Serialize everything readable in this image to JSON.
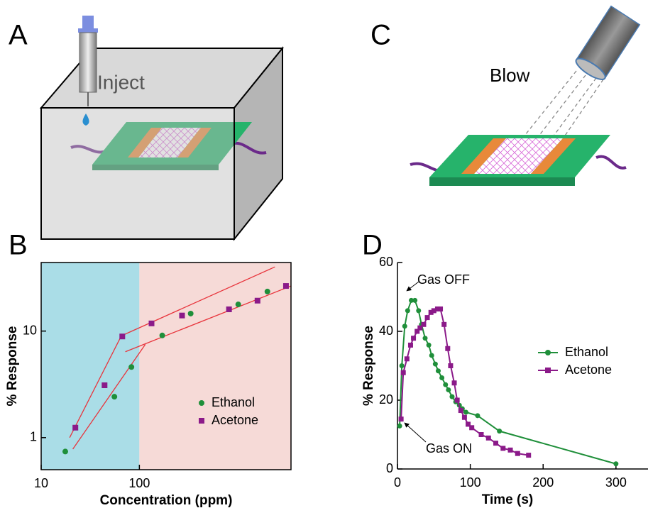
{
  "panels": {
    "a": {
      "label": "A",
      "text": "Inject"
    },
    "b": {
      "label": "B"
    },
    "c": {
      "label": "C",
      "text": "Blow"
    },
    "d": {
      "label": "D"
    }
  },
  "chart_data": [
    {
      "type": "scatter",
      "x_label": "Concentration (ppm)",
      "y_label": "% Response",
      "log_x": true,
      "log_y": true,
      "frame": true,
      "xlim": [
        10,
        3500
      ],
      "ylim": [
        0.5,
        44
      ],
      "xticks": [
        10,
        100
      ],
      "yticks": [
        1,
        10
      ],
      "regions": [
        {
          "xlim": [
            10,
            100
          ],
          "color": "#aadde7"
        },
        {
          "xlim": [
            100,
            3500
          ],
          "color": "#f6dad7"
        }
      ],
      "series": [
        {
          "name": "Ethanol",
          "color": "#1f8f3a",
          "marker": "circle",
          "x": [
            17.6,
            55.7,
            83,
            171,
            333,
            1016,
            2013
          ],
          "values": [
            0.74,
            2.42,
            4.6,
            9.1,
            14.6,
            17.8,
            23.5
          ]
        },
        {
          "name": "Acetone",
          "color": "#8b1a89",
          "marker": "square",
          "x": [
            22.3,
            44.2,
            67,
            133,
            272,
            818,
            1596,
            3112
          ],
          "values": [
            1.24,
            3.1,
            8.9,
            11.8,
            14.0,
            16.0,
            19.3,
            26.5
          ]
        }
      ],
      "fits": [
        {
          "color": "#e8343c",
          "x": [
            19.5,
            67
          ],
          "values": [
            1.0,
            9.4
          ]
        },
        {
          "color": "#e8343c",
          "x": [
            21,
            115
          ],
          "values": [
            0.78,
            7.5
          ]
        },
        {
          "color": "#e8343c",
          "x": [
            67,
            2400
          ],
          "values": [
            9.1,
            40
          ]
        },
        {
          "color": "#e8343c",
          "x": [
            72,
            3500
          ],
          "values": [
            6.4,
            26.5
          ]
        }
      ]
    },
    {
      "type": "line",
      "x_label": "Time (s)",
      "y_label": "% Response",
      "log_x": false,
      "log_y": false,
      "frame": false,
      "xlim": [
        0,
        344
      ],
      "ylim": [
        0,
        60
      ],
      "xticks": [
        0,
        100,
        200,
        300
      ],
      "yticks": [
        0,
        20,
        40,
        60
      ],
      "annotations": [
        "Gas OFF",
        "Gas ON"
      ],
      "series": [
        {
          "name": "Ethanol",
          "color": "#1f8f3a",
          "marker": "circle",
          "x": [
            3,
            6,
            10,
            14,
            19,
            24,
            29,
            33,
            38,
            43,
            47,
            52,
            56,
            61,
            66,
            70,
            75,
            80,
            85,
            89,
            94,
            110,
            140,
            300
          ],
          "values": [
            12.5,
            30,
            41.5,
            46,
            49,
            49,
            46,
            42,
            38,
            36,
            33,
            30.5,
            28.5,
            26.5,
            24.5,
            23,
            21,
            19.5,
            18.5,
            17.5,
            16.5,
            15.5,
            11,
            1.5
          ]
        },
        {
          "name": "Acetone",
          "color": "#8b1a89",
          "marker": "square",
          "x": [
            5,
            8,
            13,
            18,
            22,
            27,
            31,
            36,
            41,
            46,
            50,
            55,
            59,
            64,
            69,
            73,
            78,
            82,
            87,
            92,
            97,
            102,
            115,
            125,
            135,
            145,
            155,
            165,
            180
          ],
          "values": [
            14.5,
            28,
            32,
            36,
            38,
            40,
            41,
            42,
            44,
            45.5,
            46,
            46.5,
            46.5,
            42,
            35,
            30,
            25,
            20,
            17,
            15,
            13,
            12,
            10,
            9,
            7.5,
            6,
            5.5,
            4.5,
            4
          ]
        }
      ]
    }
  ]
}
